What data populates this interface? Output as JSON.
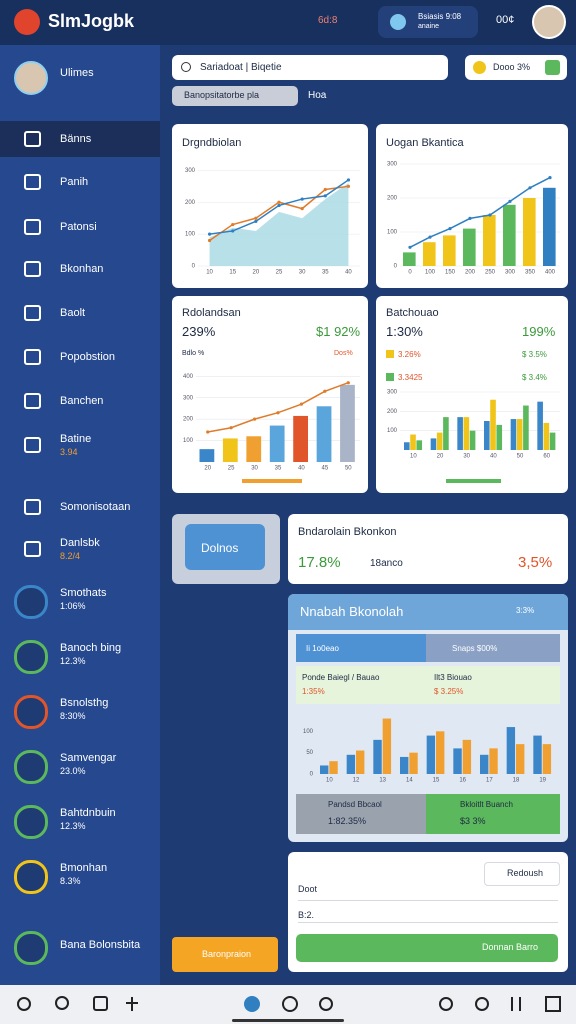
{
  "header": {
    "title": "SlmJogbk",
    "status": "6d:8",
    "notice_title": "Bsiasis 9:08",
    "notice_sub": "anaine",
    "count": "00¢"
  },
  "sidebar": {
    "user": "Ulimes",
    "items": [
      {
        "label": "Bänns"
      },
      {
        "label": "Panih"
      },
      {
        "label": "Patonsi"
      },
      {
        "label": "Bkonhan"
      },
      {
        "label": "Baolt"
      },
      {
        "label": "Popobstion"
      },
      {
        "label": "Banchen"
      },
      {
        "label": "Batine",
        "sub": "3.94"
      },
      {
        "label": "Somonisotaan"
      },
      {
        "label": "Danlsbk",
        "sub": "8.2/4"
      },
      {
        "label": "Smothats",
        "sub": "1:06%"
      },
      {
        "label": "Banoch bing",
        "sub": "12.3%"
      },
      {
        "label": "Bsnolsthg",
        "sub": "8:30%"
      },
      {
        "label": "Samvengar",
        "sub": "23.0%"
      },
      {
        "label": "Bahtdnbuin",
        "sub": "12.3%"
      },
      {
        "label": "Bmonhan",
        "sub": "8.3%"
      },
      {
        "label": "Bana Bolonsbita"
      }
    ]
  },
  "toolbar": {
    "search": "Sariadoat | Biqetie",
    "chip": "Banopsitatorbe pla",
    "chip_link": "Hoa",
    "badge": "Dooo 3%"
  },
  "left_panel": {
    "button": "Dolnos",
    "action": "Baronpraion"
  },
  "summary": {
    "title": "Bndarolain Bkonkon",
    "left": "17.8%",
    "middle": "18anco",
    "right": "3,5%"
  },
  "form": {
    "search": "Redoush",
    "field_a": "Doot",
    "field_b": "B:2.",
    "button": "Donnan Barro"
  },
  "chart_data": [
    {
      "type": "area",
      "title": "Drgndbiolan",
      "categories": [
        "10",
        "15",
        "20",
        "25",
        "30",
        "35",
        "40"
      ],
      "series": [
        {
          "type": "area",
          "color": "#a6d8e4",
          "values": [
            90,
            120,
            110,
            170,
            150,
            210,
            260
          ]
        },
        {
          "type": "line",
          "color": "#e07b2a",
          "values": [
            80,
            130,
            150,
            200,
            180,
            240,
            250
          ]
        },
        {
          "type": "line",
          "color": "#2f7fc1",
          "values": [
            100,
            110,
            140,
            190,
            210,
            220,
            270
          ]
        }
      ],
      "ylim": [
        0,
        320
      ],
      "yticks": [
        0,
        100,
        200,
        300
      ],
      "grid": true
    },
    {
      "type": "bar",
      "title": "Uogan Bkantica",
      "categories": [
        "0",
        "100",
        "150",
        "200",
        "250",
        "300",
        "350",
        "400"
      ],
      "series": [
        {
          "type": "bar",
          "colors": [
            "#5cb85c",
            "#f0c419",
            "#f0c419",
            "#5cb85c",
            "#f0c419",
            "#5cb85c",
            "#f0c419",
            "#2f7fc1"
          ],
          "values": [
            40,
            70,
            90,
            110,
            150,
            180,
            200,
            230
          ]
        },
        {
          "type": "line",
          "color": "#2f7fc1",
          "values": [
            55,
            85,
            110,
            140,
            150,
            190,
            230,
            260
          ]
        }
      ],
      "ylim": [
        0,
        300
      ],
      "yticks": [
        0,
        100,
        200,
        300
      ],
      "grid": true
    },
    {
      "type": "bar",
      "title": "Rdolandsan",
      "kpi": "239%",
      "kpi_right": "$1 92%",
      "tags": [
        "Bdlo %",
        "Dos%"
      ],
      "categories": [
        "20",
        "25",
        "30",
        "35",
        "40",
        "45",
        "50"
      ],
      "series": [
        {
          "type": "bar",
          "colors": [
            "#3a86c8",
            "#f0c419",
            "#f0a030",
            "#5aa6dc",
            "#e0552a",
            "#5aa6dc",
            "#a9b4c8"
          ],
          "values": [
            60,
            110,
            120,
            170,
            215,
            260,
            360
          ]
        },
        {
          "type": "line",
          "color": "#e07b2a",
          "values": [
            140,
            160,
            200,
            230,
            270,
            330,
            370
          ]
        }
      ],
      "ylim": [
        0,
        420
      ],
      "yticks": [
        100,
        200,
        300,
        400
      ],
      "grid": true
    },
    {
      "type": "bar",
      "title": "Batchouao",
      "kpi": "1:30%",
      "kpi_right": "199%",
      "tags": [
        "3.26%",
        "3.3425"
      ],
      "tags_right": [
        "$ 3.5%",
        "$ 3.4%"
      ],
      "categories": [
        "10",
        "20",
        "30",
        "40",
        "50",
        "60"
      ],
      "series": [
        {
          "type": "bar",
          "color": "#3a86c8",
          "values": [
            40,
            60,
            170,
            150,
            160,
            250
          ]
        },
        {
          "type": "bar",
          "color": "#f0c419",
          "values": [
            80,
            90,
            170,
            260,
            160,
            140
          ]
        },
        {
          "type": "bar",
          "color": "#5cb85c",
          "values": [
            50,
            170,
            100,
            130,
            230,
            90
          ]
        }
      ],
      "ylim": [
        0,
        300
      ],
      "yticks": [
        100,
        200,
        300
      ],
      "grid": true
    },
    {
      "type": "bar",
      "title": "Nnabah Bkonolah",
      "badge": "3:3%",
      "tabs": [
        "Ii 1o0eao",
        "Snaps $00%"
      ],
      "rows": [
        [
          "Ponde Baiegl / Bauao",
          "1:35%"
        ],
        [
          "Ilt3 Biouao",
          "$ 3.25%"
        ]
      ],
      "tiles": [
        [
          "Pandsd Bbcaol",
          "1:82.35%"
        ],
        [
          "Bkloitlt Buanch",
          "$3 3%"
        ]
      ],
      "categories": [
        "10",
        "12",
        "13",
        "14",
        "15",
        "16",
        "17",
        "18",
        "19"
      ],
      "series": [
        {
          "type": "bar",
          "color": "#3a86c8",
          "values": [
            20,
            45,
            80,
            40,
            90,
            60,
            45,
            110,
            90
          ]
        },
        {
          "type": "bar",
          "color": "#f0a030",
          "values": [
            30,
            55,
            130,
            50,
            100,
            80,
            60,
            70,
            70
          ]
        }
      ],
      "ylim": [
        0,
        150
      ],
      "yticks": [
        0,
        50,
        100
      ],
      "grid": true
    }
  ]
}
